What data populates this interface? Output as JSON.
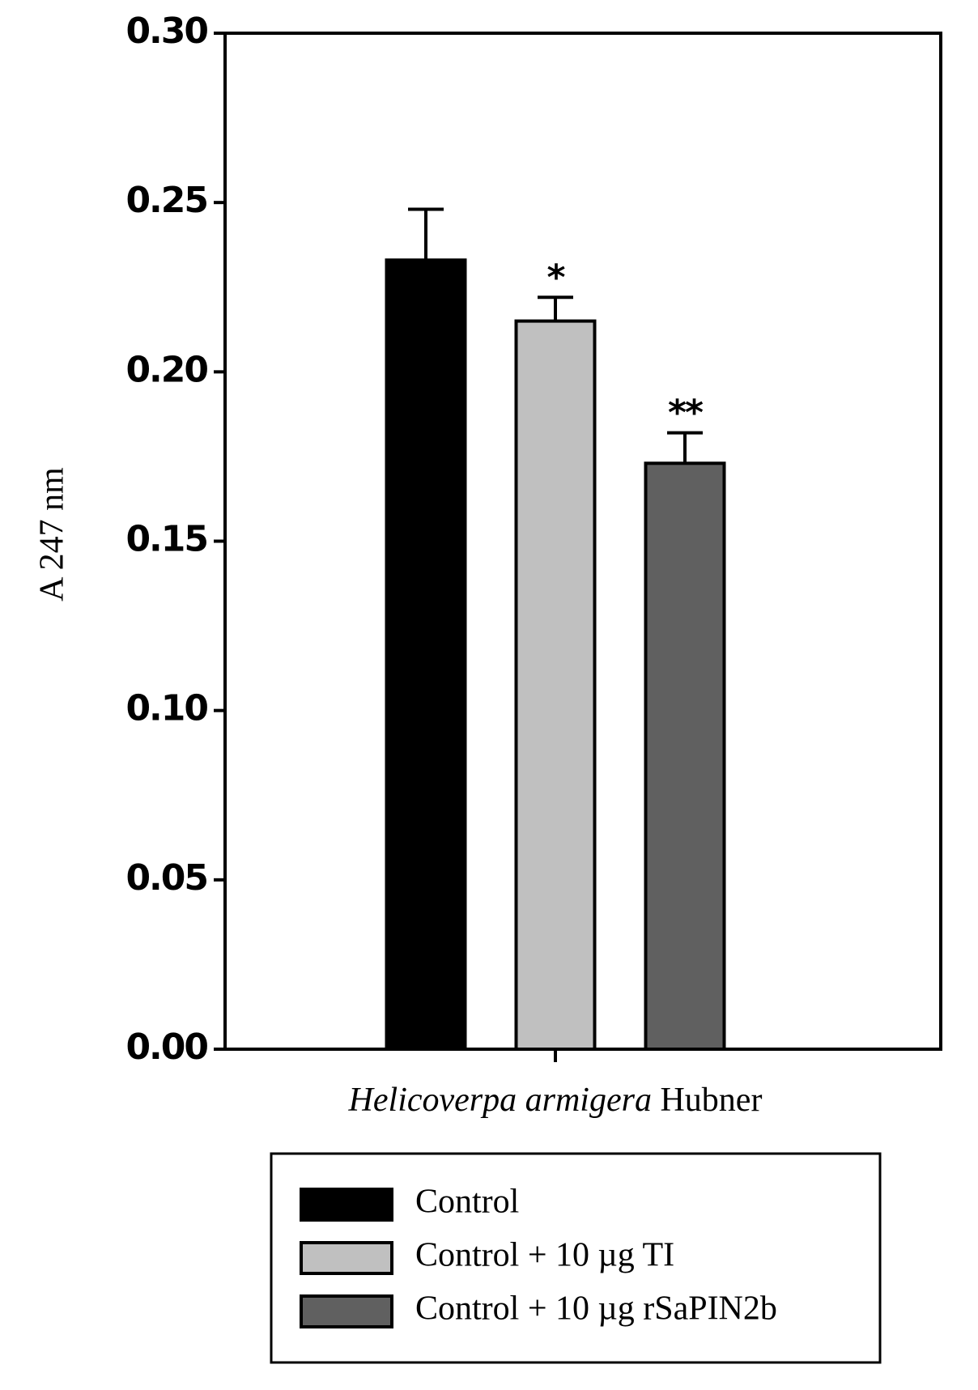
{
  "chart_data": {
    "type": "bar",
    "ylabel": "A 247 nm",
    "xlabel_parts": [
      {
        "text": "Helicoverpa armigera",
        "italic": true
      },
      {
        "text": "Hubner",
        "italic": false
      }
    ],
    "series": [
      {
        "name": "Control",
        "color": "#000000",
        "values": [
          0.233
        ],
        "errors": [
          0.015
        ]
      },
      {
        "name": "Control + 10 µg TI",
        "color": "#c0c0c0",
        "values": [
          0.215
        ],
        "errors": [
          0.007
        ],
        "annotations": [
          "*"
        ]
      },
      {
        "name": "Control + 10 µg rSaPIN2b",
        "color": "#606060",
        "values": [
          0.173
        ],
        "errors": [
          0.009
        ],
        "annotations": [
          "**"
        ]
      }
    ],
    "ylim": [
      0,
      0.3
    ],
    "yticks": [
      {
        "value": 0,
        "label": "0.00"
      },
      {
        "value": 0.05,
        "label": "0.05"
      },
      {
        "value": 0.1,
        "label": "0.10"
      },
      {
        "value": 0.15,
        "label": "0.15"
      },
      {
        "value": 0.2,
        "label": "0.20"
      },
      {
        "value": 0.25,
        "label": "0.25"
      },
      {
        "value": 0.3,
        "label": "0.30"
      }
    ],
    "legend": "bottom"
  }
}
